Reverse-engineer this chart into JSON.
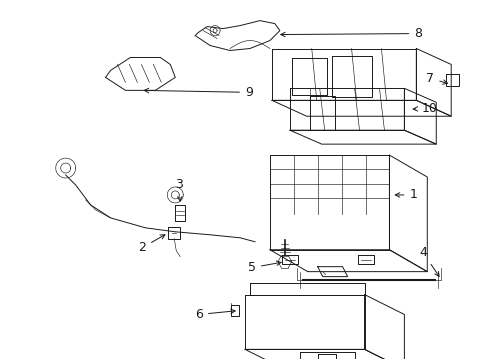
{
  "background_color": "#ffffff",
  "figsize": [
    4.89,
    3.6
  ],
  "dpi": 100,
  "image_data_url": "target_placeholder"
}
